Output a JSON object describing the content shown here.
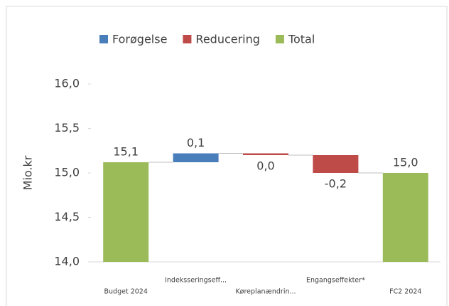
{
  "chart_data": {
    "type": "waterfall",
    "ylabel": "Mio.kr",
    "categories": [
      "Budget 2024",
      "Indeksseringseff...",
      "Køreplanændrin...",
      "Engangseffekter*",
      "FC2 2024"
    ],
    "values": [
      15.12,
      0.1,
      -0.02,
      -0.2,
      15.0
    ],
    "value_labels": [
      "15,1",
      "0,1",
      "0,0",
      "-0,2",
      "15,0"
    ],
    "kinds": [
      2,
      0,
      1,
      1,
      2
    ],
    "series": [
      {
        "name": "Forøgelse",
        "color": "#4a7ebb"
      },
      {
        "name": "Reducering",
        "color": "#be4b48"
      },
      {
        "name": "Total",
        "color": "#9bbb59"
      }
    ],
    "ylim": [
      14.0,
      16.0
    ],
    "yticks": [
      {
        "value": 14.0,
        "label": "14,0"
      },
      {
        "value": 14.5,
        "label": "14,5"
      },
      {
        "value": 15.0,
        "label": "15,0"
      },
      {
        "value": 15.5,
        "label": "15,5"
      },
      {
        "value": 16.0,
        "label": "16,0"
      }
    ],
    "legend": "top"
  }
}
